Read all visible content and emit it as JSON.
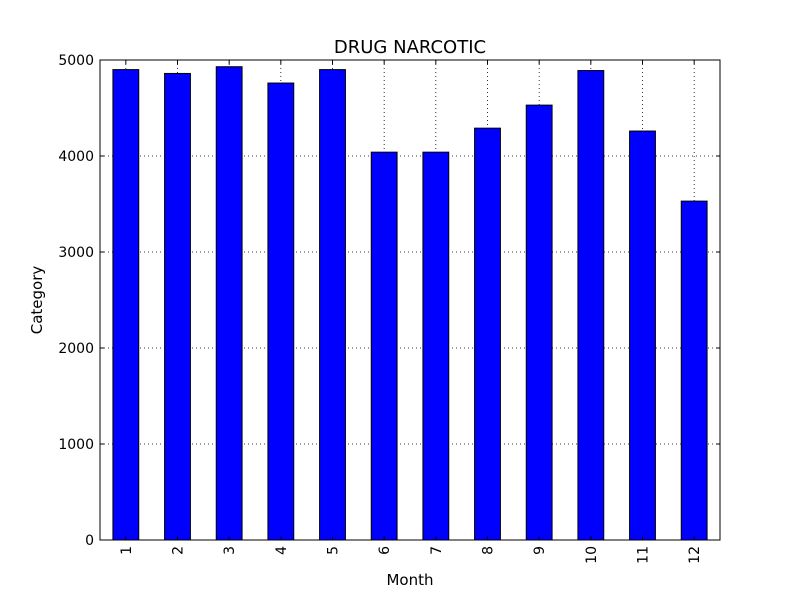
{
  "chart_data": {
    "type": "bar",
    "title": "DRUG NARCOTIC",
    "xlabel": "Month",
    "ylabel": "Category",
    "categories": [
      "1",
      "2",
      "3",
      "4",
      "5",
      "6",
      "7",
      "8",
      "9",
      "10",
      "11",
      "12"
    ],
    "values": [
      4900,
      4860,
      4930,
      4760,
      4900,
      4040,
      4040,
      4290,
      4530,
      4890,
      4260,
      3530
    ],
    "ylim": [
      0,
      5000
    ],
    "yticks": [
      0,
      1000,
      2000,
      3000,
      4000,
      5000
    ],
    "grid": true,
    "legend": "none",
    "colors": {
      "bar": "#0000ff",
      "edge": "#000000",
      "grid": "#000000",
      "background": "#ffffff"
    }
  }
}
